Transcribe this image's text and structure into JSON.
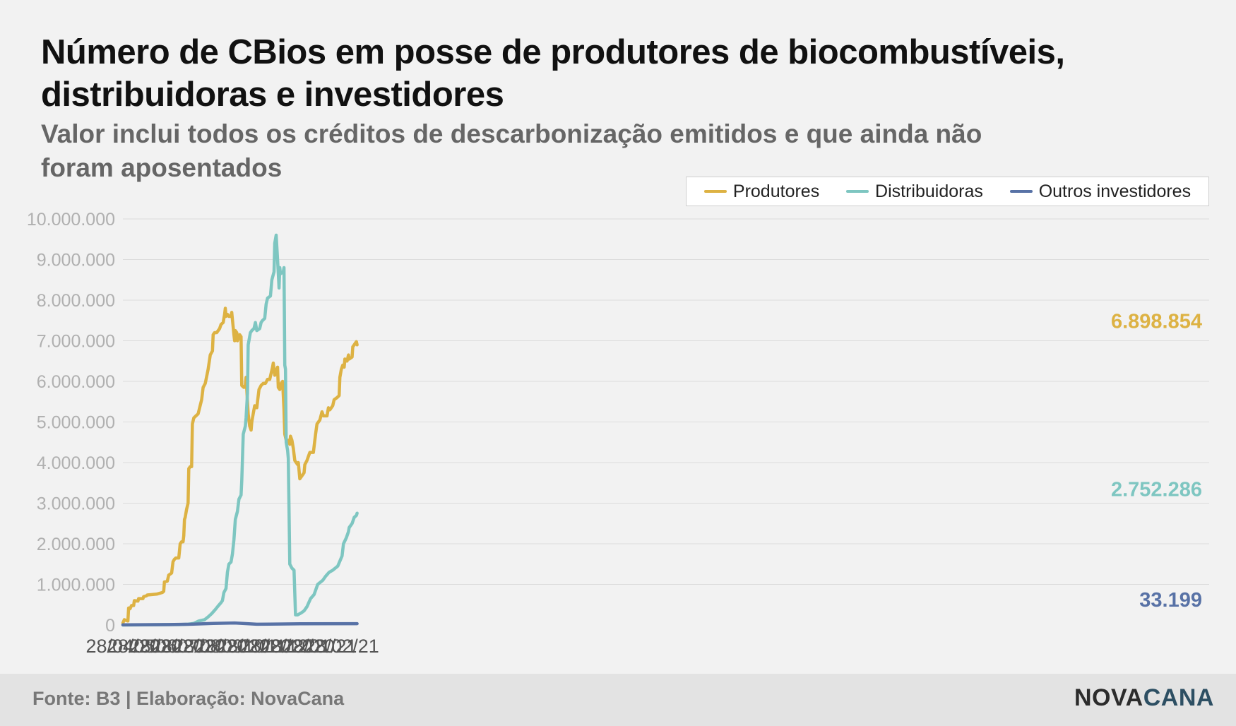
{
  "header": {
    "title": "Número de CBios em posse de produtores de biocombustíveis, distribuidoras e investidores",
    "subtitle": "Valor inclui todos os créditos de descarbonização emitidos e que ainda não foram aposentados"
  },
  "footer": {
    "source": "Fonte: B3 | Elaboração: NovaCana",
    "logo_part1": "NOVA",
    "logo_part2": "CANA"
  },
  "chart_data": {
    "type": "line",
    "title": "Número de CBios em posse de produtores de biocombustíveis, distribuidoras e investidores",
    "subtitle": "Valor inclui todos os créditos de descarbonização emitidos e que ainda não foram aposentados",
    "xlabel": "",
    "ylabel": "",
    "x_range": [
      "2020-04-28",
      "2021-03-10"
    ],
    "ylim": [
      0,
      10000000
    ],
    "y_ticks": [
      0,
      1000000,
      2000000,
      3000000,
      4000000,
      5000000,
      6000000,
      7000000,
      8000000,
      9000000,
      10000000
    ],
    "y_tick_labels": [
      "0",
      "1.000.000",
      "2.000.000",
      "3.000.000",
      "4.000.000",
      "5.000.000",
      "6.000.000",
      "7.000.000",
      "8.000.000",
      "9.000.000",
      "10.000.000"
    ],
    "x_ticks": [
      "2020-04-28",
      "2020-05-28",
      "2020-06-28",
      "2020-07-28",
      "2020-08-28",
      "2020-09-28",
      "2020-10-28",
      "2020-11-28",
      "2020-12-28",
      "2021-01-28",
      "2021-02-28"
    ],
    "x_tick_labels": [
      "28/04/20",
      "28/05/20",
      "28/06/20",
      "28/07/20",
      "28/08/20",
      "28/09/20",
      "28/10/20",
      "28/11/20",
      "28/12/20",
      "28/01/21",
      "28/02/21"
    ],
    "grid": true,
    "legend": "top-right",
    "series": [
      {
        "name": "Produtores",
        "color": "#ddb243",
        "end_label": "6.898.854",
        "points": [
          [
            "2020-04-28",
            50000
          ],
          [
            "2020-04-30",
            130000
          ],
          [
            "2020-05-03",
            110000
          ],
          [
            "2020-05-05",
            100000
          ],
          [
            "2020-05-06",
            420000
          ],
          [
            "2020-05-08",
            400000
          ],
          [
            "2020-05-10",
            480000
          ],
          [
            "2020-05-13",
            480000
          ],
          [
            "2020-05-14",
            600000
          ],
          [
            "2020-05-19",
            590000
          ],
          [
            "2020-05-20",
            650000
          ],
          [
            "2020-05-26",
            650000
          ],
          [
            "2020-05-27",
            700000
          ],
          [
            "2020-05-31",
            720000
          ],
          [
            "2020-06-01",
            740000
          ],
          [
            "2020-06-14",
            760000
          ],
          [
            "2020-06-22",
            800000
          ],
          [
            "2020-06-24",
            830000
          ],
          [
            "2020-06-25",
            1060000
          ],
          [
            "2020-06-29",
            1080000
          ],
          [
            "2020-07-01",
            1230000
          ],
          [
            "2020-07-05",
            1280000
          ],
          [
            "2020-07-07",
            1560000
          ],
          [
            "2020-07-09",
            1620000
          ],
          [
            "2020-07-11",
            1650000
          ],
          [
            "2020-07-15",
            1650000
          ],
          [
            "2020-07-17",
            2000000
          ],
          [
            "2020-07-19",
            2050000
          ],
          [
            "2020-07-21",
            2050000
          ],
          [
            "2020-07-22",
            2200000
          ],
          [
            "2020-07-23",
            2600000
          ],
          [
            "2020-07-24",
            2650000
          ],
          [
            "2020-07-26",
            2850000
          ],
          [
            "2020-07-28",
            3000000
          ],
          [
            "2020-07-29",
            3850000
          ],
          [
            "2020-07-31",
            3900000
          ],
          [
            "2020-08-02",
            3900000
          ],
          [
            "2020-08-03",
            4950000
          ],
          [
            "2020-08-05",
            5100000
          ],
          [
            "2020-08-08",
            5150000
          ],
          [
            "2020-08-11",
            5200000
          ],
          [
            "2020-08-16",
            5550000
          ],
          [
            "2020-08-18",
            5850000
          ],
          [
            "2020-08-21",
            5950000
          ],
          [
            "2020-08-25",
            6300000
          ],
          [
            "2020-08-28",
            6650000
          ],
          [
            "2020-08-31",
            6750000
          ],
          [
            "2020-09-01",
            7150000
          ],
          [
            "2020-09-03",
            7200000
          ],
          [
            "2020-09-06",
            7200000
          ],
          [
            "2020-09-10",
            7300000
          ],
          [
            "2020-09-12",
            7400000
          ],
          [
            "2020-09-15",
            7450000
          ],
          [
            "2020-09-17",
            7650000
          ],
          [
            "2020-09-18",
            7800000
          ],
          [
            "2020-09-19",
            7600000
          ],
          [
            "2020-09-21",
            7650000
          ],
          [
            "2020-09-23",
            7600000
          ],
          [
            "2020-09-26",
            7600000
          ],
          [
            "2020-09-27",
            7700000
          ],
          [
            "2020-09-30",
            7150000
          ],
          [
            "2020-10-01",
            7000000
          ],
          [
            "2020-10-02",
            7250000
          ],
          [
            "2020-10-04",
            7200000
          ],
          [
            "2020-10-05",
            7000000
          ],
          [
            "2020-10-08",
            7150000
          ],
          [
            "2020-10-10",
            7100000
          ],
          [
            "2020-10-11",
            5900000
          ],
          [
            "2020-10-14",
            5850000
          ],
          [
            "2020-10-16",
            5900000
          ],
          [
            "2020-10-17",
            6100000
          ],
          [
            "2020-10-18",
            5800000
          ],
          [
            "2020-10-20",
            5200000
          ],
          [
            "2020-10-22",
            4900000
          ],
          [
            "2020-10-24",
            4800000
          ],
          [
            "2020-10-25",
            5000000
          ],
          [
            "2020-10-27",
            5200000
          ],
          [
            "2020-10-29",
            5400000
          ],
          [
            "2020-11-01",
            5350000
          ],
          [
            "2020-11-02",
            5500000
          ],
          [
            "2020-11-04",
            5800000
          ],
          [
            "2020-11-07",
            5900000
          ],
          [
            "2020-11-10",
            5950000
          ],
          [
            "2020-11-13",
            5950000
          ],
          [
            "2020-11-16",
            6050000
          ],
          [
            "2020-11-19",
            6050000
          ],
          [
            "2020-11-21",
            6200000
          ],
          [
            "2020-11-23",
            6350000
          ],
          [
            "2020-11-24",
            6450000
          ],
          [
            "2020-11-26",
            6150000
          ],
          [
            "2020-11-28",
            6250000
          ],
          [
            "2020-11-30",
            6350000
          ],
          [
            "2020-12-01",
            5850000
          ],
          [
            "2020-12-03",
            5800000
          ],
          [
            "2020-12-05",
            5950000
          ],
          [
            "2020-12-07",
            6000000
          ],
          [
            "2020-12-09",
            5300000
          ],
          [
            "2020-12-10",
            4700000
          ],
          [
            "2020-12-12",
            4550000
          ],
          [
            "2020-12-15",
            4550000
          ],
          [
            "2020-12-17",
            4450000
          ],
          [
            "2020-12-18",
            4650000
          ],
          [
            "2020-12-20",
            4550000
          ],
          [
            "2020-12-22",
            4350000
          ],
          [
            "2020-12-24",
            4050000
          ],
          [
            "2020-12-28",
            3950000
          ],
          [
            "2020-12-29",
            4000000
          ],
          [
            "2020-12-31",
            3600000
          ],
          [
            "2021-01-04",
            3700000
          ],
          [
            "2021-01-06",
            3750000
          ],
          [
            "2021-01-07",
            3950000
          ],
          [
            "2021-01-10",
            4050000
          ],
          [
            "2021-01-12",
            4150000
          ],
          [
            "2021-01-14",
            4250000
          ],
          [
            "2021-01-19",
            4250000
          ],
          [
            "2021-01-22",
            4700000
          ],
          [
            "2021-01-24",
            4950000
          ],
          [
            "2021-01-28",
            5050000
          ],
          [
            "2021-01-31",
            5250000
          ],
          [
            "2021-02-02",
            5150000
          ],
          [
            "2021-02-07",
            5150000
          ],
          [
            "2021-02-09",
            5350000
          ],
          [
            "2021-02-11",
            5300000
          ],
          [
            "2021-02-15",
            5400000
          ],
          [
            "2021-02-17",
            5550000
          ],
          [
            "2021-02-21",
            5600000
          ],
          [
            "2021-02-24",
            5650000
          ],
          [
            "2021-02-25",
            6100000
          ],
          [
            "2021-02-27",
            6300000
          ],
          [
            "2021-03-01",
            6400000
          ],
          [
            "2021-03-03",
            6350000
          ],
          [
            "2021-03-04",
            6550000
          ],
          [
            "2021-03-07",
            6500000
          ],
          [
            "2021-03-09",
            6650000
          ],
          [
            "2021-03-10",
            6550000
          ],
          [
            "2021-03-14",
            6600000
          ],
          [
            "2021-03-15",
            6850000
          ],
          [
            "2021-03-17",
            6900000
          ],
          [
            "2021-03-20",
            6980000
          ],
          [
            "2021-03-21",
            6898854
          ]
        ]
      },
      {
        "name": "Distribuidoras",
        "color": "#7ec6c1",
        "end_label": "2.752.286",
        "points": [
          [
            "2020-04-28",
            0
          ],
          [
            "2020-07-15",
            10000
          ],
          [
            "2020-07-28",
            20000
          ],
          [
            "2020-08-05",
            40000
          ],
          [
            "2020-08-12",
            100000
          ],
          [
            "2020-08-20",
            130000
          ],
          [
            "2020-08-25",
            200000
          ],
          [
            "2020-08-30",
            280000
          ],
          [
            "2020-09-04",
            380000
          ],
          [
            "2020-09-08",
            470000
          ],
          [
            "2020-09-12",
            550000
          ],
          [
            "2020-09-14",
            600000
          ],
          [
            "2020-09-16",
            800000
          ],
          [
            "2020-09-19",
            900000
          ],
          [
            "2020-09-21",
            1300000
          ],
          [
            "2020-09-23",
            1500000
          ],
          [
            "2020-09-26",
            1550000
          ],
          [
            "2020-09-28",
            1750000
          ],
          [
            "2020-09-30",
            2100000
          ],
          [
            "2020-10-02",
            2600000
          ],
          [
            "2020-10-05",
            2800000
          ],
          [
            "2020-10-07",
            3100000
          ],
          [
            "2020-10-10",
            3200000
          ],
          [
            "2020-10-11",
            3550000
          ],
          [
            "2020-10-13",
            4700000
          ],
          [
            "2020-10-16",
            4900000
          ],
          [
            "2020-10-17",
            5100000
          ],
          [
            "2020-10-19",
            5700000
          ],
          [
            "2020-10-20",
            6900000
          ],
          [
            "2020-10-23",
            7200000
          ],
          [
            "2020-10-25",
            7250000
          ],
          [
            "2020-10-28",
            7300000
          ],
          [
            "2020-10-30",
            7450000
          ],
          [
            "2020-11-01",
            7250000
          ],
          [
            "2020-11-05",
            7300000
          ],
          [
            "2020-11-07",
            7450000
          ],
          [
            "2020-11-09",
            7500000
          ],
          [
            "2020-11-12",
            7550000
          ],
          [
            "2020-11-14",
            7900000
          ],
          [
            "2020-11-16",
            8050000
          ],
          [
            "2020-11-20",
            8100000
          ],
          [
            "2020-11-22",
            8500000
          ],
          [
            "2020-11-25",
            8700000
          ],
          [
            "2020-11-26",
            9400000
          ],
          [
            "2020-11-28",
            9600000
          ],
          [
            "2020-11-30",
            9000000
          ],
          [
            "2020-12-02",
            8300000
          ],
          [
            "2020-12-03",
            8800000
          ],
          [
            "2020-12-04",
            8650000
          ],
          [
            "2020-12-08",
            8700000
          ],
          [
            "2020-12-09",
            8800000
          ],
          [
            "2020-12-10",
            6400000
          ],
          [
            "2020-12-11",
            6300000
          ],
          [
            "2020-12-12",
            4500000
          ],
          [
            "2020-12-14",
            4300000
          ],
          [
            "2020-12-15",
            4100000
          ],
          [
            "2020-12-17",
            1500000
          ],
          [
            "2020-12-20",
            1400000
          ],
          [
            "2020-12-23",
            1350000
          ],
          [
            "2020-12-25",
            250000
          ],
          [
            "2020-12-28",
            250000
          ],
          [
            "2021-01-02",
            300000
          ],
          [
            "2021-01-06",
            350000
          ],
          [
            "2021-01-10",
            450000
          ],
          [
            "2021-01-15",
            650000
          ],
          [
            "2021-01-20",
            750000
          ],
          [
            "2021-01-25",
            1000000
          ],
          [
            "2021-02-01",
            1100000
          ],
          [
            "2021-02-05",
            1200000
          ],
          [
            "2021-02-10",
            1300000
          ],
          [
            "2021-02-15",
            1350000
          ],
          [
            "2021-02-22",
            1450000
          ],
          [
            "2021-02-28",
            1700000
          ],
          [
            "2021-03-02",
            2000000
          ],
          [
            "2021-03-06",
            2150000
          ],
          [
            "2021-03-09",
            2300000
          ],
          [
            "2021-03-10",
            2400000
          ],
          [
            "2021-03-14",
            2500000
          ],
          [
            "2021-03-17",
            2650000
          ],
          [
            "2021-03-20",
            2700000
          ],
          [
            "2021-03-21",
            2752286
          ]
        ]
      },
      {
        "name": "Outros investidores",
        "color": "#5872a6",
        "end_label": "33.199",
        "points": [
          [
            "2020-04-28",
            5000
          ],
          [
            "2020-07-01",
            10000
          ],
          [
            "2020-08-01",
            20000
          ],
          [
            "2020-09-01",
            40000
          ],
          [
            "2020-10-01",
            50000
          ],
          [
            "2020-11-01",
            20000
          ],
          [
            "2020-12-01",
            25000
          ],
          [
            "2021-01-01",
            30000
          ],
          [
            "2021-03-21",
            33199
          ]
        ]
      }
    ]
  }
}
